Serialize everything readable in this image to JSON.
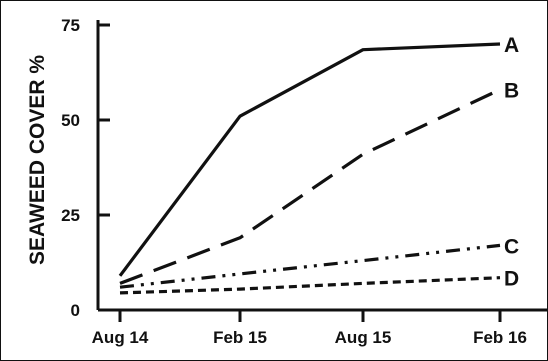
{
  "chart_data": {
    "type": "line",
    "title": "",
    "xlabel": "",
    "ylabel": "SEAWEED COVER %",
    "categories": [
      "Aug 14",
      "Feb 15",
      "Aug 15",
      "Feb 16"
    ],
    "yticks": [
      0,
      25,
      50,
      75
    ],
    "ylim": [
      0,
      75
    ],
    "grid": false,
    "legend": "inline labels at line ends",
    "series": [
      {
        "name": "A",
        "values": [
          9,
          51,
          68.5,
          70
        ],
        "style": "solid"
      },
      {
        "name": "B",
        "values": [
          7,
          19,
          41,
          58
        ],
        "style": "dashed"
      },
      {
        "name": "C",
        "values": [
          6,
          9.5,
          13,
          17
        ],
        "style": "dash-dot-dot"
      },
      {
        "name": "D",
        "values": [
          4.5,
          5.5,
          7,
          8.5
        ],
        "style": "short-dashed"
      }
    ],
    "colors": {
      "line": "#111111",
      "background": "#ffffff"
    }
  }
}
